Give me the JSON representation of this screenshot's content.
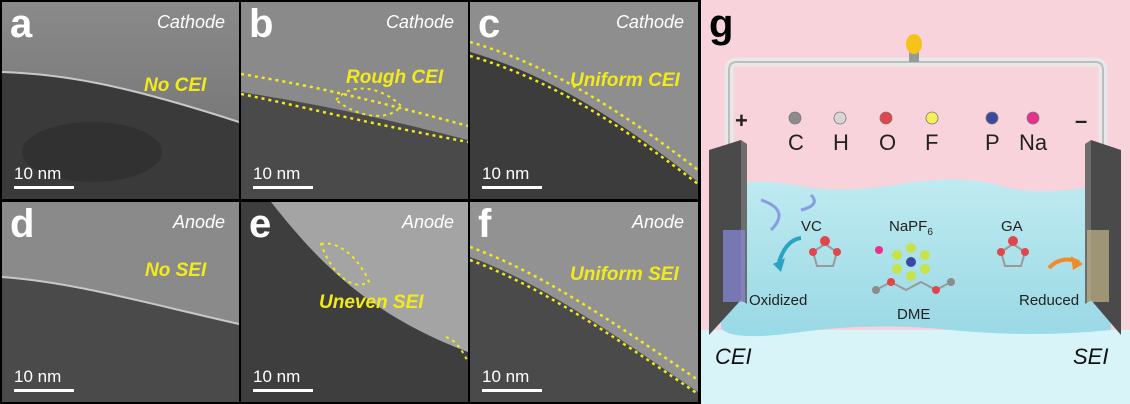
{
  "panels": [
    {
      "letter": "a",
      "type": "Cathode",
      "annotation": "No CEI",
      "scale": "10 nm"
    },
    {
      "letter": "b",
      "type": "Cathode",
      "annotation": "Rough CEI",
      "scale": "10 nm"
    },
    {
      "letter": "c",
      "type": "Cathode",
      "annotation": "Uniform CEI",
      "scale": "10 nm"
    },
    {
      "letter": "d",
      "type": "Anode",
      "annotation": "No SEI",
      "scale": "10 nm"
    },
    {
      "letter": "e",
      "type": "Anode",
      "annotation": "Uneven SEI",
      "scale": "10 nm"
    },
    {
      "letter": "f",
      "type": "Anode",
      "annotation": "Uniform SEI",
      "scale": "10 nm"
    }
  ],
  "schematic": {
    "letter": "g",
    "plus": "+",
    "minus": "–",
    "elements": [
      {
        "symbol": "C",
        "color": "#8c8c8c"
      },
      {
        "symbol": "H",
        "color": "#d6d6d6"
      },
      {
        "symbol": "O",
        "color": "#e0474c"
      },
      {
        "symbol": "F",
        "color": "#f5f05a"
      },
      {
        "symbol": "P",
        "color": "#3b4aa0"
      },
      {
        "symbol": "Na",
        "color": "#e8308f"
      }
    ],
    "molecules": {
      "vc": "VC",
      "napf": "NaPF",
      "napf_sub": "6",
      "ga": "GA",
      "dme": "DME",
      "oxidized": "Oxidized",
      "reduced": "Reduced"
    },
    "cei": "CEI",
    "sei": "SEI",
    "colors": {
      "top_bg": "#f9d3dc",
      "electrolyte": "#aee6ee",
      "annotation": "#f2ea1a"
    }
  }
}
